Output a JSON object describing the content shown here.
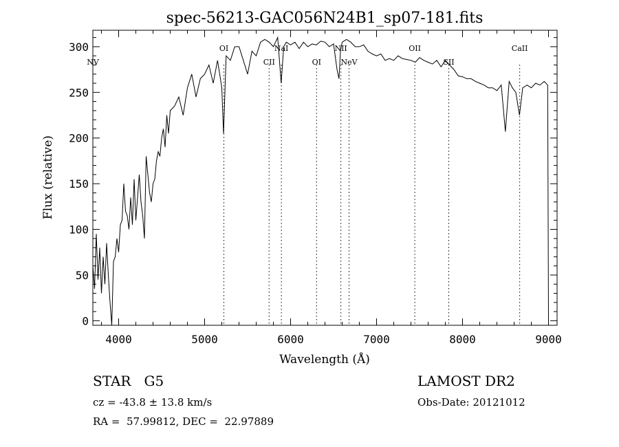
{
  "chart_data": {
    "type": "line",
    "title": "spec-56213-GAC056N24B1_sp07-181.fits",
    "xlabel": "Wavelength (Å)",
    "ylabel": "Flux (relative)",
    "xlim": [
      3700,
      9100
    ],
    "ylim": [
      -5,
      318
    ],
    "xticks": [
      4000,
      5000,
      6000,
      7000,
      8000,
      9000
    ],
    "yticks": [
      0,
      50,
      100,
      150,
      200,
      250,
      300
    ],
    "grid": false,
    "series": [
      {
        "x": [
          3700,
          3720,
          3740,
          3760,
          3780,
          3800,
          3820,
          3840,
          3860,
          3880,
          3900,
          3920,
          3940,
          3960,
          3980,
          4000,
          4020,
          4040,
          4060,
          4080,
          4100,
          4120,
          4140,
          4160,
          4180,
          4200,
          4220,
          4240,
          4260,
          4280,
          4300,
          4320,
          4340,
          4360,
          4380,
          4400,
          4420,
          4440,
          4460,
          4480,
          4500,
          4520,
          4540,
          4560,
          4580,
          4600,
          4650,
          4700,
          4750,
          4800,
          4850,
          4900,
          4950,
          5000,
          5050,
          5100,
          5150,
          5200,
          5220,
          5250,
          5300,
          5350,
          5400,
          5450,
          5500,
          5550,
          5600,
          5650,
          5700,
          5750,
          5800,
          5850,
          5890,
          5920,
          5950,
          6000,
          6050,
          6100,
          6150,
          6200,
          6250,
          6300,
          6350,
          6400,
          6450,
          6500,
          6540,
          6563,
          6580,
          6600,
          6650,
          6700,
          6750,
          6800,
          6850,
          6900,
          6950,
          7000,
          7050,
          7100,
          7150,
          7200,
          7250,
          7300,
          7350,
          7400,
          7450,
          7500,
          7550,
          7600,
          7650,
          7700,
          7750,
          7800,
          7850,
          7900,
          7950,
          8000,
          8050,
          8100,
          8150,
          8200,
          8250,
          8300,
          8350,
          8400,
          8450,
          8498,
          8542,
          8580,
          8620,
          8662,
          8700,
          8750,
          8800,
          8850,
          8900,
          8950,
          8990,
          9000
        ],
        "y": [
          60,
          35,
          95,
          45,
          80,
          30,
          70,
          40,
          85,
          50,
          20,
          -10,
          65,
          70,
          90,
          75,
          105,
          110,
          150,
          120,
          115,
          100,
          135,
          105,
          155,
          110,
          135,
          160,
          130,
          115,
          90,
          180,
          160,
          140,
          130,
          150,
          155,
          175,
          185,
          180,
          200,
          210,
          190,
          225,
          205,
          230,
          235,
          245,
          225,
          255,
          270,
          245,
          265,
          270,
          280,
          260,
          285,
          255,
          205,
          290,
          285,
          300,
          300,
          285,
          270,
          295,
          290,
          305,
          308,
          305,
          300,
          310,
          260,
          300,
          305,
          302,
          305,
          298,
          305,
          300,
          303,
          302,
          306,
          305,
          300,
          303,
          275,
          265,
          295,
          305,
          308,
          305,
          300,
          300,
          302,
          295,
          292,
          290,
          292,
          285,
          287,
          285,
          290,
          287,
          286,
          285,
          283,
          288,
          285,
          283,
          281,
          285,
          278,
          285,
          280,
          275,
          268,
          267,
          265,
          265,
          262,
          260,
          258,
          255,
          255,
          252,
          258,
          207,
          262,
          255,
          250,
          225,
          255,
          258,
          255,
          260,
          258,
          262,
          258,
          0
        ]
      }
    ],
    "annotations": [
      {
        "text": "NV",
        "x": 3700
      },
      {
        "text": "OI",
        "x": 5224
      },
      {
        "text": "CII",
        "x": 5750
      },
      {
        "text": "NaI",
        "x": 5893
      },
      {
        "text": "OI",
        "x": 6302
      },
      {
        "text": "NII",
        "x": 6585
      },
      {
        "text": "NeV",
        "x": 6680
      },
      {
        "text": "OII",
        "x": 7445
      },
      {
        "text": "SII",
        "x": 7840
      },
      {
        "text": "CaII",
        "x": 8665
      }
    ]
  },
  "info": {
    "object_line": "STAR   G5",
    "cz_line": "cz = -43.8 ± 13.8 km/s",
    "radec_line": "RA =  57.99812, DEC =  22.97889",
    "survey": "LAMOST DR2",
    "obs_date": "Obs-Date: 20121012"
  }
}
